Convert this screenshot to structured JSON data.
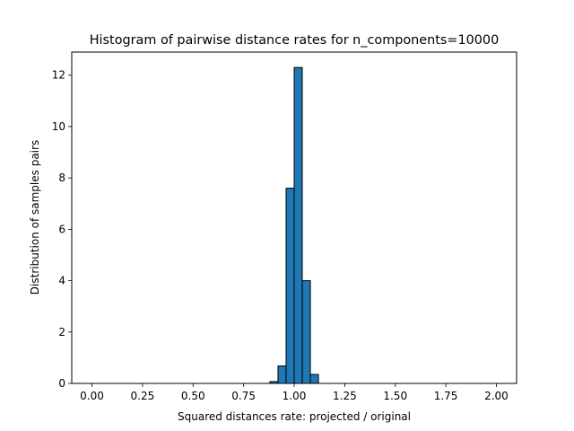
{
  "chart_data": {
    "type": "bar",
    "subtype": "histogram",
    "title": "Histogram of pairwise distance rates for n_components=10000",
    "xlabel": "Squared distances rate: projected / original",
    "ylabel": "Distribution of samples pairs",
    "xlim": [
      -0.1,
      2.1
    ],
    "ylim": [
      0,
      12.9
    ],
    "xticks": [
      0.0,
      0.25,
      0.5,
      0.75,
      1.0,
      1.25,
      1.5,
      1.75,
      2.0
    ],
    "xtick_labels": [
      "0.00",
      "0.25",
      "0.50",
      "0.75",
      "1.00",
      "1.25",
      "1.50",
      "1.75",
      "2.00"
    ],
    "yticks": [
      0,
      2,
      4,
      6,
      8,
      10,
      12
    ],
    "ytick_labels": [
      "0",
      "2",
      "4",
      "6",
      "8",
      "10",
      "12"
    ],
    "bin_range": [
      0,
      2
    ],
    "bins": 50,
    "bin_width": 0.04,
    "bars": [
      {
        "x0": 0.88,
        "x1": 0.92,
        "height": 0.07
      },
      {
        "x0": 0.92,
        "x1": 0.96,
        "height": 0.68
      },
      {
        "x0": 0.96,
        "x1": 1.0,
        "height": 7.6
      },
      {
        "x0": 1.0,
        "x1": 1.04,
        "height": 12.3
      },
      {
        "x0": 1.04,
        "x1": 1.08,
        "height": 4.0
      },
      {
        "x0": 1.08,
        "x1": 1.12,
        "height": 0.35
      }
    ],
    "bar_color": "#1f77b4",
    "edge_color": "#000000",
    "grid": false,
    "legend": null
  }
}
